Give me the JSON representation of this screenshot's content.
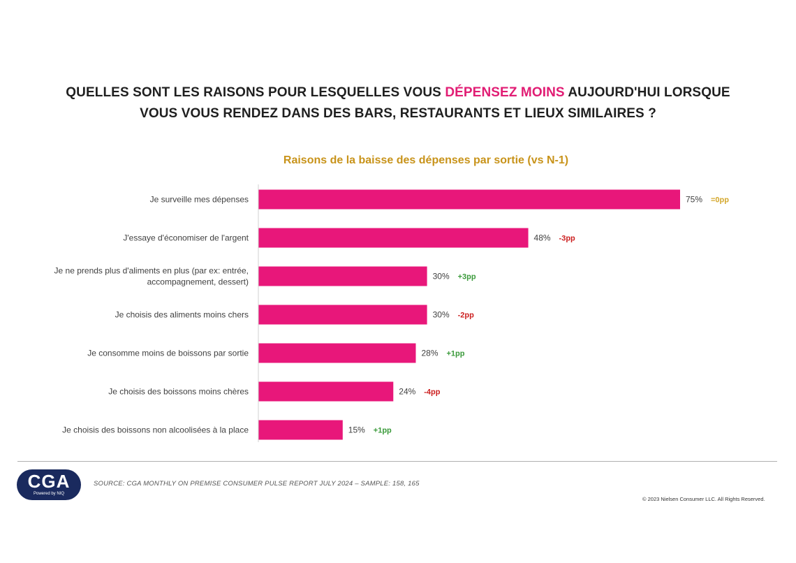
{
  "title": {
    "part1": "QUELLES SONT LES RAISONS POUR LESQUELLES VOUS ",
    "highlight": "DÉPENSEZ MOINS",
    "part2": " AUJOURD'HUI LORSQUE",
    "line2": "VOUS VOUS RENDEZ DANS DES BARS, RESTAURANTS ET LIEUX SIMILAIRES ?"
  },
  "chart_data": {
    "type": "bar",
    "orientation": "horizontal",
    "title": "Raisons de la baisse des dépenses par sortie (vs N-1)",
    "categories": [
      [
        "Je surveille mes dépenses"
      ],
      [
        "J'essaye d'économiser de l'argent"
      ],
      [
        "Je ne prends plus d'aliments en plus (par ex: entrée,",
        "accompagnement, dessert)"
      ],
      [
        "Je choisis des aliments moins chers"
      ],
      [
        "Je consomme moins de boissons par sortie"
      ],
      [
        "Je choisis des boissons moins chères"
      ],
      [
        "Je choisis des boissons non alcoolisées à la place"
      ]
    ],
    "values": [
      75,
      48,
      30,
      30,
      28,
      24,
      15
    ],
    "value_labels": [
      "75%",
      "48%",
      "30%",
      "30%",
      "28%",
      "24%",
      "15%"
    ],
    "changes": [
      "=0pp",
      "-3pp",
      "+3pp",
      "-2pp",
      "+1pp",
      "-4pp",
      "+1pp"
    ],
    "change_colors": [
      "#d4a72c",
      "#cc2020",
      "#3a9a3a",
      "#cc2020",
      "#3a9a3a",
      "#cc2020",
      "#3a9a3a"
    ],
    "bar_color": "#e8177a",
    "xlim": [
      0,
      75
    ]
  },
  "footer": {
    "logo_text": "CGA",
    "logo_sub": "Powered by NIQ",
    "source": "SOURCE: CGA MONTHLY ON PREMISE CONSUMER PULSE REPORT JULY  2024 – SAMPLE: 158, 165",
    "copyright": "© 2023 Nielsen Consumer LLC. All Rights Reserved."
  }
}
